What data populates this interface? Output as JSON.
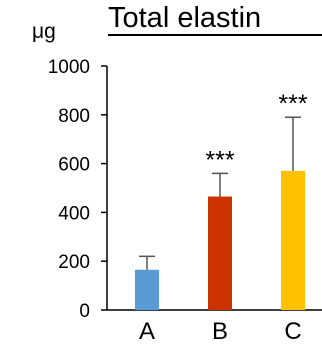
{
  "chart_data": {
    "type": "bar",
    "title": "Total elastin",
    "unit": "μg",
    "categories": [
      "A",
      "B",
      "C"
    ],
    "values": [
      165,
      465,
      570
    ],
    "error_upper": [
      55,
      95,
      220
    ],
    "significance": [
      "",
      "***",
      "***"
    ],
    "colors": [
      "#5b9bd5",
      "#cc3300",
      "#ffc000"
    ],
    "ylim": [
      0,
      1000
    ],
    "yticks": [
      0,
      200,
      400,
      600,
      800,
      1000
    ],
    "grid": false,
    "legend": "none"
  }
}
